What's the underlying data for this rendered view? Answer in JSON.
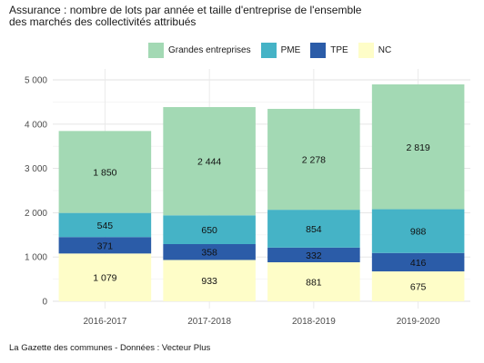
{
  "title_line1": "Assurance : nombre de lots par année et taille d'entreprise de l'ensemble",
  "title_line2": "des marchés des collectivités attribués",
  "source": "La Gazette des communes - Données : Vecteur Plus",
  "chart_data": {
    "type": "bar",
    "stacked": true,
    "categories": [
      "2016-2017",
      "2017-2018",
      "2018-2019",
      "2019-2020"
    ],
    "series": [
      {
        "name": "NC",
        "color": "#fefdc8",
        "values": [
          1079,
          933,
          881,
          675
        ],
        "labels": [
          "1 079",
          "933",
          "881",
          "675"
        ]
      },
      {
        "name": "TPE",
        "color": "#2b5ca8",
        "values": [
          371,
          358,
          332,
          416
        ],
        "labels": [
          "371",
          "358",
          "332",
          "416"
        ]
      },
      {
        "name": "PME",
        "color": "#45b3c6",
        "values": [
          545,
          650,
          854,
          988
        ],
        "labels": [
          "545",
          "650",
          "854",
          "988"
        ]
      },
      {
        "name": "Grandes entreprises",
        "color": "#a3d9b4",
        "values": [
          1850,
          2444,
          2278,
          2819
        ],
        "labels": [
          "1 850",
          "2 444",
          "2 278",
          "2 819"
        ]
      }
    ],
    "legend_order": [
      "Grandes entreprises",
      "PME",
      "TPE",
      "NC"
    ],
    "legend_position": "top",
    "ylim": [
      0,
      5000
    ],
    "yticks": [
      0,
      1000,
      2000,
      3000,
      4000,
      5000
    ],
    "ytick_labels": [
      "0",
      "1 000",
      "2 000",
      "3 000",
      "4 000",
      "5 000"
    ],
    "grid": true
  }
}
